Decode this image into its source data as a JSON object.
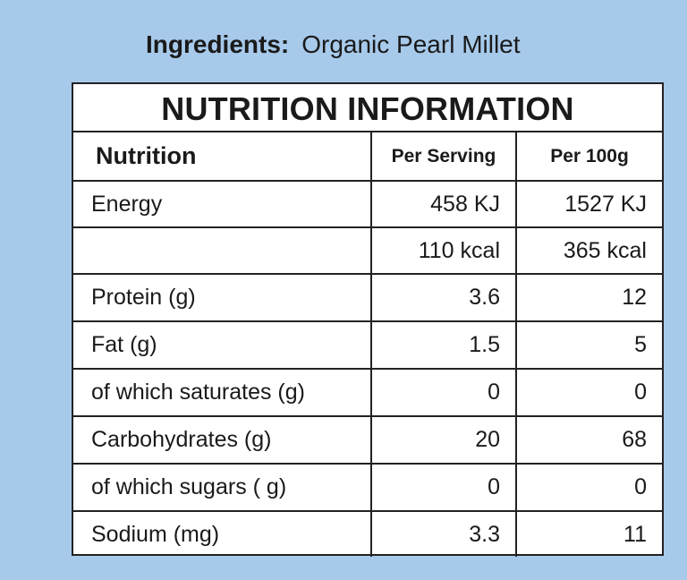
{
  "ingredients": {
    "label": "Ingredients:",
    "value": "Organic Pearl Millet"
  },
  "table": {
    "title": "NUTRITION INFORMATION",
    "headers": [
      "Nutrition",
      "Per Serving",
      "Per 100g"
    ],
    "rows": [
      [
        "Energy",
        "458 KJ",
        "1527 KJ"
      ],
      [
        "",
        "110 kcal",
        "365 kcal"
      ],
      [
        "Protein (g)",
        "3.6",
        "12"
      ],
      [
        "Fat (g)",
        "1.5",
        "5"
      ],
      [
        "of which saturates (g)",
        "0",
        "0"
      ],
      [
        "Carbohydrates (g)",
        "20",
        "68"
      ],
      [
        "of which sugars ( g)",
        "0",
        "0"
      ],
      [
        "Sodium (mg)",
        "3.3",
        "11"
      ]
    ]
  }
}
